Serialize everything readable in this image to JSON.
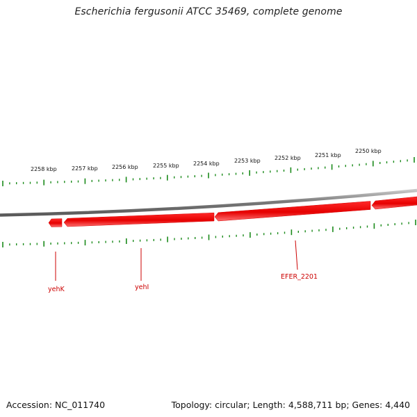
{
  "title": "Escherichia fergusonii ATCC 35469, complete genome",
  "footer": {
    "accession": "Accession: NC_011740",
    "summary": "Topology: circular; Length: 4,588,711 bp; Genes: 4,440"
  },
  "colors": {
    "tick_green": "#1a8a1a",
    "gene_red": "#e60000",
    "gene_red_light": "#ff6a6a",
    "backbone_gray": "#888888",
    "label_red": "#cc0000"
  },
  "scale_labels": [
    {
      "text": "2258 kbp"
    },
    {
      "text": "2257 kbp"
    },
    {
      "text": "2256 kbp"
    },
    {
      "text": "2255 kbp"
    },
    {
      "text": "2254 kbp"
    },
    {
      "text": "2253 kbp"
    },
    {
      "text": "2252 kbp"
    },
    {
      "text": "2251 kbp"
    },
    {
      "text": "2250 kbp"
    }
  ],
  "gene_labels": [
    {
      "text": "yehK"
    },
    {
      "text": "yehI"
    },
    {
      "text": "EFER_2201"
    }
  ]
}
